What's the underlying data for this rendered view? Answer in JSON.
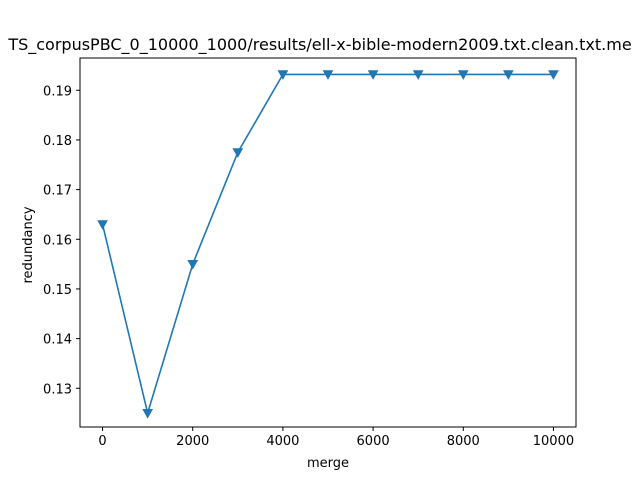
{
  "chart_data": {
    "type": "line",
    "title": "TS_corpusPBC_0_10000_1000/results/ell-x-bible-modern2009.txt.clean.txt.me",
    "xlabel": "merge",
    "ylabel": "redundancy",
    "xlim": [
      -500,
      10500
    ],
    "ylim": [
      0.1222,
      0.1965
    ],
    "xticks": [
      0,
      2000,
      4000,
      6000,
      8000,
      10000
    ],
    "yticks": [
      0.13,
      0.14,
      0.15,
      0.16,
      0.17,
      0.18,
      0.19
    ],
    "marker": "triangle-down",
    "color": "#1f77b4",
    "grid": false,
    "series": [
      {
        "x": [
          0,
          1000,
          2000,
          3000,
          4000,
          5000,
          6000,
          7000,
          8000,
          9000,
          10000
        ],
        "values": [
          0.163,
          0.125,
          0.155,
          0.1775,
          0.1932,
          0.1932,
          0.1932,
          0.1932,
          0.1932,
          0.1932,
          0.1932
        ]
      }
    ]
  }
}
